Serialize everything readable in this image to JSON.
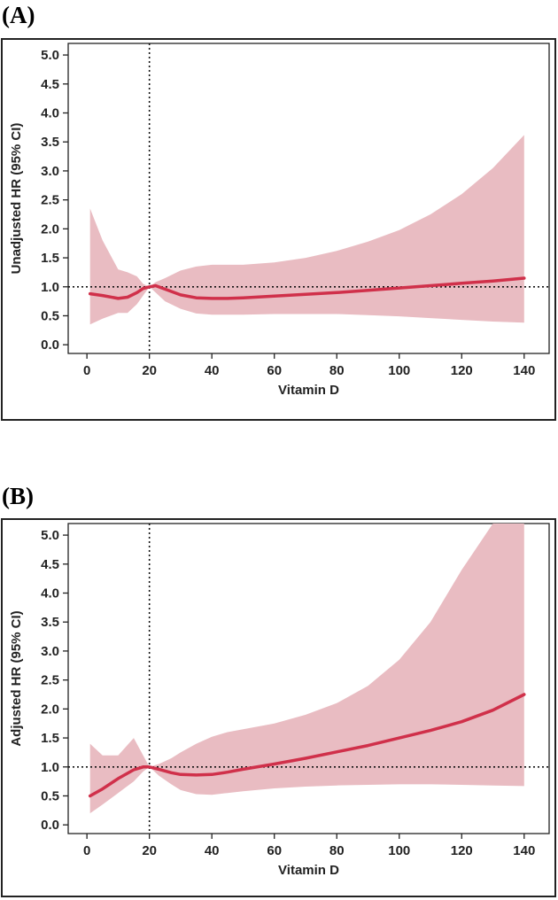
{
  "chart_data": [
    {
      "type": "line",
      "panel_label": "(A)",
      "xlabel": "Vitamin D",
      "ylabel": "Unadjusted HR (95% CI)",
      "xlim": [
        -6,
        148
      ],
      "ylim": [
        -0.15,
        5.2
      ],
      "xticks": [
        "0",
        "20",
        "40",
        "60",
        "80",
        "100",
        "120",
        "140"
      ],
      "yticks": [
        "0.0",
        "0.5",
        "1.0",
        "1.5",
        "2.0",
        "2.5",
        "3.0",
        "3.5",
        "4.0",
        "4.5",
        "5.0"
      ],
      "reference_x": 20,
      "reference_y": 1.0,
      "series": [
        {
          "name": "HR",
          "color": "#d0304a",
          "band_color": "#e9bcc2",
          "x": [
            1,
            5,
            10,
            13,
            16,
            18,
            20,
            22,
            25,
            30,
            35,
            40,
            45,
            50,
            60,
            70,
            80,
            90,
            100,
            110,
            120,
            130,
            140
          ],
          "y": [
            0.88,
            0.85,
            0.8,
            0.82,
            0.9,
            0.97,
            1.0,
            1.02,
            0.96,
            0.86,
            0.81,
            0.8,
            0.8,
            0.81,
            0.84,
            0.87,
            0.9,
            0.94,
            0.98,
            1.02,
            1.06,
            1.1,
            1.15
          ],
          "lower": [
            0.35,
            0.45,
            0.55,
            0.55,
            0.7,
            0.85,
            1.0,
            0.9,
            0.75,
            0.62,
            0.54,
            0.52,
            0.52,
            0.52,
            0.53,
            0.53,
            0.53,
            0.51,
            0.49,
            0.46,
            0.43,
            0.4,
            0.38
          ],
          "upper": [
            2.35,
            1.8,
            1.3,
            1.25,
            1.18,
            1.05,
            1.0,
            1.08,
            1.15,
            1.28,
            1.35,
            1.38,
            1.38,
            1.38,
            1.42,
            1.5,
            1.62,
            1.78,
            1.98,
            2.25,
            2.6,
            3.05,
            3.62
          ]
        }
      ]
    },
    {
      "type": "line",
      "panel_label": "(B)",
      "xlabel": "Vitamin D",
      "ylabel": "Adjusted HR (95% CI)",
      "xlim": [
        -6,
        148
      ],
      "ylim": [
        -0.15,
        5.2
      ],
      "xticks": [
        "0",
        "20",
        "40",
        "60",
        "80",
        "100",
        "120",
        "140"
      ],
      "yticks": [
        "0.0",
        "0.5",
        "1.0",
        "1.5",
        "2.0",
        "2.5",
        "3.0",
        "3.5",
        "4.0",
        "4.5",
        "5.0"
      ],
      "reference_x": 20,
      "reference_y": 1.0,
      "series": [
        {
          "name": "HR",
          "color": "#d0304a",
          "band_color": "#e9bcc2",
          "x": [
            1,
            5,
            10,
            15,
            18,
            20,
            23,
            27,
            30,
            35,
            40,
            45,
            50,
            60,
            70,
            80,
            90,
            100,
            110,
            120,
            130,
            140
          ],
          "y": [
            0.5,
            0.62,
            0.8,
            0.95,
            1.0,
            1.0,
            0.96,
            0.9,
            0.87,
            0.86,
            0.87,
            0.91,
            0.96,
            1.05,
            1.15,
            1.26,
            1.37,
            1.5,
            1.63,
            1.78,
            1.98,
            2.25
          ],
          "lower": [
            0.2,
            0.35,
            0.55,
            0.75,
            0.92,
            1.0,
            0.85,
            0.7,
            0.6,
            0.53,
            0.52,
            0.55,
            0.58,
            0.63,
            0.66,
            0.68,
            0.69,
            0.7,
            0.7,
            0.69,
            0.68,
            0.67
          ],
          "upper": [
            1.4,
            1.2,
            1.2,
            1.5,
            1.2,
            1.0,
            1.05,
            1.15,
            1.25,
            1.4,
            1.52,
            1.6,
            1.65,
            1.75,
            1.9,
            2.1,
            2.4,
            2.85,
            3.5,
            4.4,
            5.2,
            5.2
          ]
        }
      ]
    }
  ]
}
